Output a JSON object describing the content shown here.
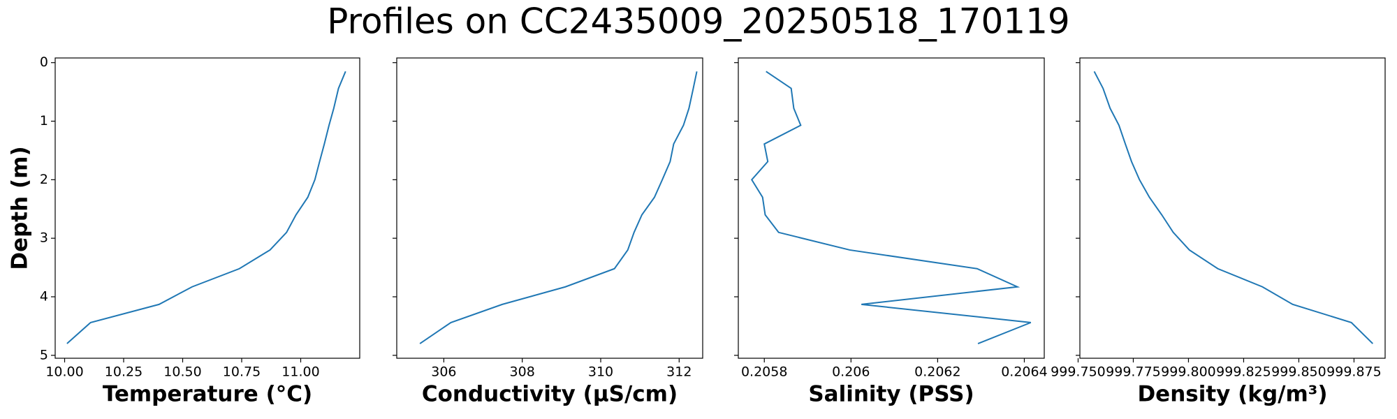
{
  "title": "Profiles on CC2435009_20250518_170119",
  "chart_data": [
    {
      "type": "line",
      "xlabel": "Temperature (°C)",
      "ylabel": "Depth (m)",
      "color": "#1f77b4",
      "invert_y": true,
      "ytick_labels": true,
      "x": [
        11.19,
        11.16,
        11.14,
        11.12,
        11.1,
        11.08,
        11.06,
        11.03,
        10.98,
        10.94,
        10.87,
        10.74,
        10.54,
        10.4,
        10.11,
        10.01
      ],
      "y": [
        0.15,
        0.44,
        0.78,
        1.07,
        1.39,
        1.69,
        2.0,
        2.3,
        2.6,
        2.9,
        3.2,
        3.52,
        3.83,
        4.13,
        4.44,
        4.8
      ],
      "xlim": [
        9.96,
        11.25
      ],
      "ylim": [
        -0.08,
        5.05
      ],
      "xticks": [
        {
          "value": 10.0,
          "label": "10.00"
        },
        {
          "value": 10.25,
          "label": "10.25"
        },
        {
          "value": 10.5,
          "label": "10.50"
        },
        {
          "value": 10.75,
          "label": "10.75"
        },
        {
          "value": 11.0,
          "label": "11.00"
        }
      ],
      "yticks": [
        0,
        1,
        2,
        3,
        4,
        5
      ]
    },
    {
      "type": "line",
      "xlabel": "Conductivity (µS/cm)",
      "color": "#1f77b4",
      "invert_y": true,
      "ytick_labels": false,
      "x": [
        312.45,
        312.36,
        312.25,
        312.11,
        311.86,
        311.77,
        311.57,
        311.37,
        311.05,
        310.85,
        310.69,
        310.35,
        309.1,
        307.49,
        306.18,
        305.39
      ],
      "y": [
        0.15,
        0.44,
        0.78,
        1.07,
        1.39,
        1.69,
        2.0,
        2.3,
        2.6,
        2.9,
        3.2,
        3.52,
        3.83,
        4.13,
        4.44,
        4.8
      ],
      "xlim": [
        304.8,
        312.6
      ],
      "ylim": [
        -0.08,
        5.05
      ],
      "xticks": [
        306,
        308,
        310,
        312
      ],
      "yticks": [
        0,
        1,
        2,
        3,
        4,
        5
      ]
    },
    {
      "type": "line",
      "xlabel": "Salinity (PSS)",
      "color": "#1f77b4",
      "invert_y": true,
      "ytick_labels": false,
      "x": [
        0.205804,
        0.205862,
        0.205868,
        0.205884,
        0.2058,
        0.205808,
        0.205771,
        0.205796,
        0.205802,
        0.205833,
        0.205997,
        0.206291,
        0.206384,
        0.206024,
        0.206415,
        0.206293
      ],
      "y": [
        0.15,
        0.44,
        0.78,
        1.07,
        1.39,
        1.69,
        2.0,
        2.3,
        2.6,
        2.9,
        3.2,
        3.52,
        3.83,
        4.13,
        4.44,
        4.8
      ],
      "xlim": [
        0.20574,
        0.206446
      ],
      "ylim": [
        -0.08,
        5.05
      ],
      "xticks": [
        0.2058,
        0.206,
        0.2062,
        0.2064
      ],
      "yticks": [
        0,
        1,
        2,
        3,
        4,
        5
      ]
    },
    {
      "type": "line",
      "xlabel": "Density (kg/m³)",
      "color": "#1f77b4",
      "invert_y": true,
      "ytick_labels": false,
      "x": [
        999.7573,
        999.7613,
        999.7645,
        999.7685,
        999.7714,
        999.7742,
        999.7778,
        999.7823,
        999.7879,
        999.7931,
        999.8004,
        999.8133,
        999.8335,
        999.8472,
        999.8738,
        999.8835
      ],
      "y": [
        0.15,
        0.44,
        0.78,
        1.07,
        1.39,
        1.69,
        2.0,
        2.3,
        2.6,
        2.9,
        3.2,
        3.52,
        3.83,
        4.13,
        4.44,
        4.8
      ],
      "xlim": [
        999.7508,
        999.8891
      ],
      "ylim": [
        -0.08,
        5.05
      ],
      "xticks": [
        {
          "value": 999.75,
          "label": "999.750"
        },
        {
          "value": 999.775,
          "label": "999.775"
        },
        {
          "value": 999.8,
          "label": "999.800"
        },
        {
          "value": 999.825,
          "label": "999.825"
        },
        {
          "value": 999.85,
          "label": "999.850"
        },
        {
          "value": 999.875,
          "label": "999.875"
        }
      ],
      "yticks": [
        0,
        1,
        2,
        3,
        4,
        5
      ]
    }
  ]
}
